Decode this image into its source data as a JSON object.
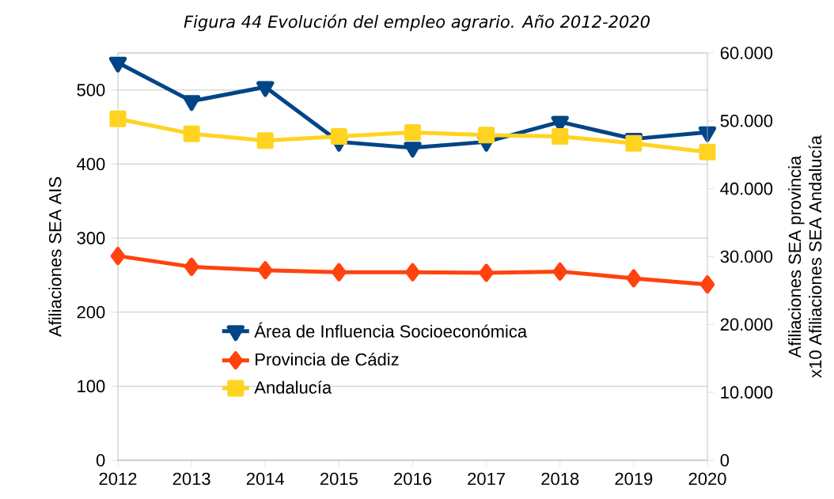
{
  "chart_data": {
    "type": "line",
    "title": "Figura 44 Evolución del empleo agrario. Año 2012-2020",
    "categories": [
      "2012",
      "2013",
      "2014",
      "2015",
      "2016",
      "2017",
      "2018",
      "2019",
      "2020"
    ],
    "ylabel": "Afiliaciones SEA AIS",
    "y2label": "Afiliaciones SEA provincia x10 Afiliaciones SEA Andalucía",
    "ylim": [
      0,
      550
    ],
    "yticks": [
      0,
      100,
      200,
      300,
      400,
      500
    ],
    "y2lim": [
      0,
      60000
    ],
    "y2ticks": [
      {
        "value": 0,
        "label": "0"
      },
      {
        "value": 10000,
        "label": "10.000"
      },
      {
        "value": 20000,
        "label": "20.000"
      },
      {
        "value": 30000,
        "label": "30.000"
      },
      {
        "value": 40000,
        "label": "40.000"
      },
      {
        "value": 50000,
        "label": "50.000"
      },
      {
        "value": 60000,
        "label": "60.000"
      }
    ],
    "grid": "y",
    "legend": "bottom left",
    "line_style": "solid",
    "series": [
      {
        "name": "Área de Influencia Socioeconómica",
        "color": "#004586",
        "marker": "triangle",
        "values": [
          537,
          485,
          504,
          430,
          422,
          430,
          457,
          434,
          443
        ]
      },
      {
        "name": "Provincia de Cádiz",
        "color": "#ff420e",
        "marker": "diamond",
        "axis": "y2",
        "values": [
          30100,
          28500,
          28000,
          27700,
          27700,
          27600,
          27800,
          26800,
          25900
        ]
      },
      {
        "name": "Andalucía",
        "color": "#ffd320",
        "marker": "square",
        "axis": "y2",
        "values": [
          50300,
          48100,
          47100,
          47700,
          48300,
          47900,
          47700,
          46700,
          45400
        ]
      }
    ]
  }
}
